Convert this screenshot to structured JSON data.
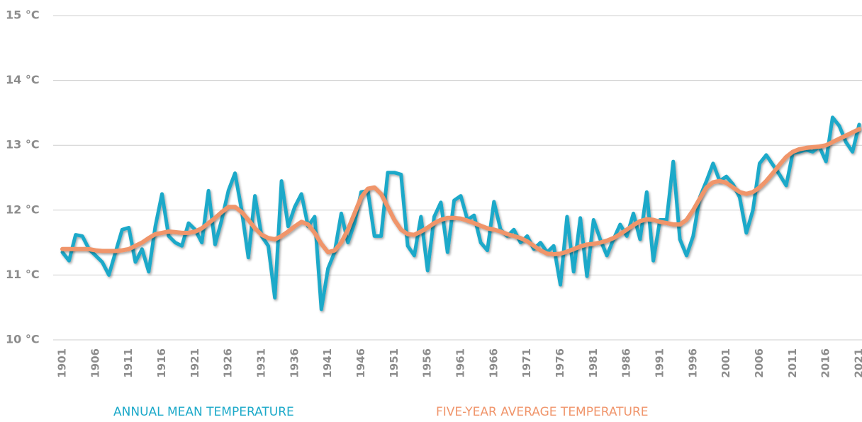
{
  "chart_data": {
    "type": "line",
    "x": [
      1901,
      1902,
      1903,
      1904,
      1905,
      1906,
      1907,
      1908,
      1909,
      1910,
      1911,
      1912,
      1913,
      1914,
      1915,
      1916,
      1917,
      1918,
      1919,
      1920,
      1921,
      1922,
      1923,
      1924,
      1925,
      1926,
      1927,
      1928,
      1929,
      1930,
      1931,
      1932,
      1933,
      1934,
      1935,
      1936,
      1937,
      1938,
      1939,
      1940,
      1941,
      1942,
      1943,
      1944,
      1945,
      1946,
      1947,
      1948,
      1949,
      1950,
      1951,
      1952,
      1953,
      1954,
      1955,
      1956,
      1957,
      1958,
      1959,
      1960,
      1961,
      1962,
      1963,
      1964,
      1965,
      1966,
      1967,
      1968,
      1969,
      1970,
      1971,
      1972,
      1973,
      1974,
      1975,
      1976,
      1977,
      1978,
      1979,
      1980,
      1981,
      1982,
      1983,
      1984,
      1985,
      1986,
      1987,
      1988,
      1989,
      1990,
      1991,
      1992,
      1993,
      1994,
      1995,
      1996,
      1997,
      1998,
      1999,
      2000,
      2001,
      2002,
      2003,
      2004,
      2005,
      2006,
      2007,
      2008,
      2009,
      2010,
      2011,
      2012,
      2013,
      2014,
      2015,
      2016,
      2017,
      2018,
      2019,
      2020,
      2021
    ],
    "series": [
      {
        "name": "ANNUAL MEAN TEMPERATURE",
        "color": "#1ba9c9",
        "values": [
          11.35,
          11.22,
          11.62,
          11.6,
          11.4,
          11.3,
          11.2,
          11.0,
          11.35,
          11.7,
          11.73,
          11.2,
          11.4,
          11.05,
          11.75,
          12.25,
          11.6,
          11.5,
          11.45,
          11.8,
          11.7,
          11.5,
          12.3,
          11.47,
          11.85,
          12.3,
          12.57,
          12.0,
          11.27,
          12.22,
          11.6,
          11.45,
          10.65,
          12.45,
          11.75,
          12.05,
          12.25,
          11.75,
          11.9,
          10.47,
          11.1,
          11.35,
          11.95,
          11.5,
          11.8,
          12.28,
          12.3,
          11.6,
          11.6,
          12.58,
          12.58,
          12.55,
          11.45,
          11.3,
          11.9,
          11.07,
          11.9,
          12.12,
          11.35,
          12.15,
          12.22,
          11.85,
          11.92,
          11.5,
          11.38,
          12.13,
          11.7,
          11.6,
          11.7,
          11.5,
          11.6,
          11.4,
          11.5,
          11.35,
          11.45,
          10.85,
          11.9,
          11.05,
          11.88,
          10.98,
          11.85,
          11.55,
          11.3,
          11.55,
          11.78,
          11.6,
          11.95,
          11.55,
          12.28,
          11.22,
          11.85,
          11.85,
          12.75,
          11.55,
          11.3,
          11.6,
          12.2,
          12.45,
          12.72,
          12.45,
          12.52,
          12.4,
          12.2,
          11.65,
          12.0,
          12.72,
          12.85,
          12.7,
          12.55,
          12.38,
          12.88,
          12.9,
          12.93,
          12.9,
          12.98,
          12.75,
          13.43,
          13.3,
          13.05,
          12.9,
          13.32
        ]
      },
      {
        "name": "FIVE-YEAR AVERAGE TEMPERATURE",
        "color": "#f0956b",
        "values": [
          11.4,
          11.4,
          11.4,
          11.4,
          11.4,
          11.38,
          11.37,
          11.37,
          11.37,
          11.38,
          11.4,
          11.45,
          11.5,
          11.57,
          11.63,
          11.65,
          11.67,
          11.66,
          11.65,
          11.65,
          11.67,
          11.72,
          11.8,
          11.88,
          11.97,
          12.05,
          12.05,
          11.97,
          11.85,
          11.72,
          11.62,
          11.57,
          11.55,
          11.6,
          11.67,
          11.75,
          11.82,
          11.78,
          11.65,
          11.48,
          11.35,
          11.38,
          11.5,
          11.7,
          11.95,
          12.2,
          12.33,
          12.35,
          12.25,
          12.05,
          11.85,
          11.7,
          11.63,
          11.62,
          11.67,
          11.73,
          11.8,
          11.85,
          11.88,
          11.88,
          11.87,
          11.84,
          11.8,
          11.76,
          11.72,
          11.7,
          11.67,
          11.63,
          11.6,
          11.57,
          11.52,
          11.45,
          11.38,
          11.33,
          11.32,
          11.33,
          11.36,
          11.4,
          11.44,
          11.47,
          11.48,
          11.5,
          11.53,
          11.57,
          11.63,
          11.7,
          11.77,
          11.83,
          11.86,
          11.85,
          11.82,
          11.8,
          11.78,
          11.78,
          11.85,
          12.0,
          12.18,
          12.35,
          12.43,
          12.45,
          12.42,
          12.35,
          12.28,
          12.25,
          12.28,
          12.35,
          12.45,
          12.57,
          12.7,
          12.82,
          12.9,
          12.94,
          12.96,
          12.97,
          12.98,
          13.0,
          13.05,
          13.1,
          13.15,
          13.2,
          13.25
        ]
      }
    ],
    "xlim": [
      1901,
      2021
    ],
    "xticks": [
      1901,
      1906,
      1911,
      1916,
      1921,
      1926,
      1931,
      1936,
      1941,
      1946,
      1951,
      1956,
      1961,
      1966,
      1971,
      1976,
      1981,
      1986,
      1991,
      1996,
      2001,
      2006,
      2011,
      2016,
      2021
    ],
    "ylim": [
      10,
      15
    ],
    "yticks": [
      {
        "value": 10,
        "label": "10 °C"
      },
      {
        "value": 11,
        "label": "11 °C"
      },
      {
        "value": 12,
        "label": "12 °C"
      },
      {
        "value": 13,
        "label": "13 °C"
      },
      {
        "value": 14,
        "label": "14 °C"
      },
      {
        "value": 15,
        "label": "15 °C"
      }
    ],
    "grid": true,
    "legend": "bottom"
  }
}
